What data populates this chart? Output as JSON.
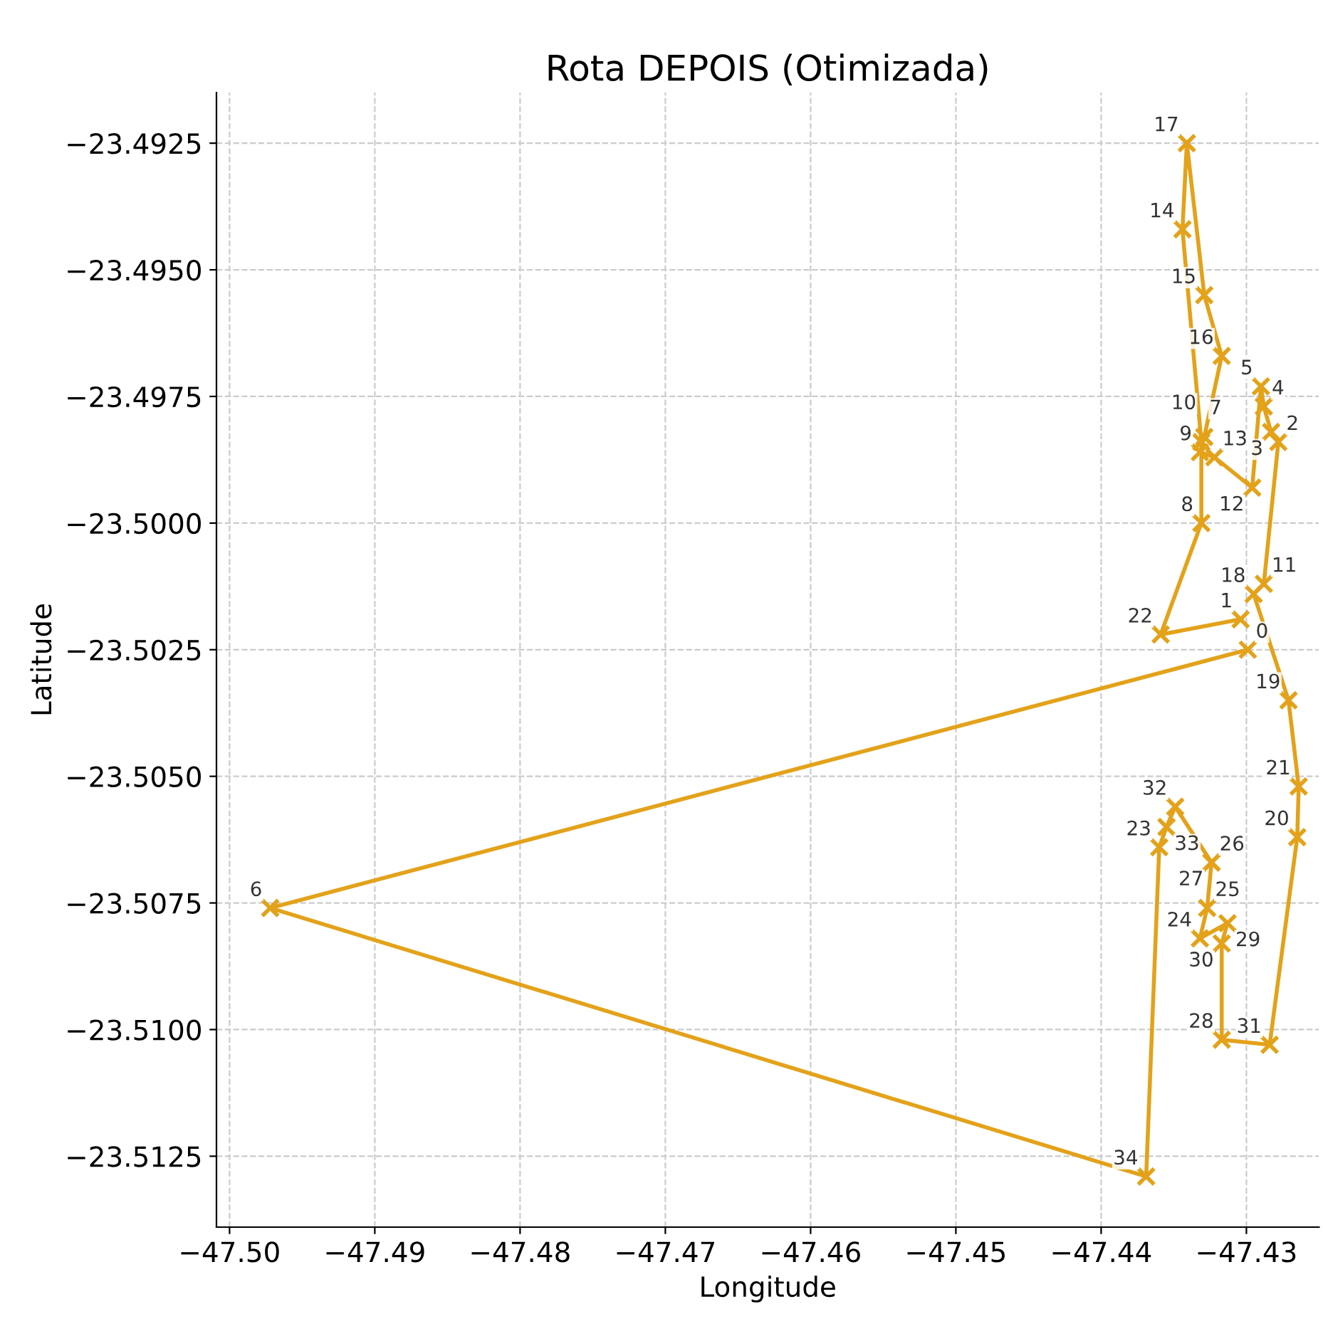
{
  "chart_data": {
    "type": "line",
    "title": "Rota DEPOIS (Otimizada)",
    "xlabel": "Longitude",
    "ylabel": "Latitude",
    "series": [
      {
        "color": "#e3a21a",
        "marker": "cross",
        "line_style": "solid",
        "x": [
          -47.4299,
          -47.4972,
          -47.4369,
          -47.436,
          -47.4355,
          -47.4349,
          -47.4324,
          -47.4324,
          -47.4327,
          -47.4332,
          -47.4313,
          -47.4317,
          -47.4317,
          -47.4284,
          -47.4265,
          -47.4264,
          -47.4271,
          -47.4295,
          -47.4288,
          -47.4278,
          -47.4283,
          -47.4288,
          -47.429,
          -47.4296,
          -47.4322,
          -47.4332,
          -47.4329,
          -47.4317,
          -47.4329,
          -47.4341,
          -47.4344,
          -47.4331,
          -47.4331,
          -47.4359,
          -47.4304
        ],
        "values": [
          -23.5025,
          -23.5076,
          -23.5129,
          -23.5064,
          -23.506,
          -23.5056,
          -23.5067,
          -23.5067,
          -23.5076,
          -23.5082,
          -23.5079,
          -23.5083,
          -23.5102,
          -23.5103,
          -23.5062,
          -23.5052,
          -23.5035,
          -23.5014,
          -23.5012,
          -23.4984,
          -23.4982,
          -23.4977,
          -23.4973,
          -23.4993,
          -23.4987,
          -23.4986,
          -23.4983,
          -23.4967,
          -23.4955,
          -23.4925,
          -23.4942,
          -23.4984,
          -23.5,
          -23.5022,
          -23.5019
        ]
      }
    ],
    "annotations": [
      {
        "text": "0",
        "x": -47.4299,
        "y": -23.5025
      },
      {
        "text": "6",
        "x": -47.4972,
        "y": -23.5076
      },
      {
        "text": "34",
        "x": -47.4369,
        "y": -23.5129
      },
      {
        "text": "23",
        "x": -47.436,
        "y": -23.5064
      },
      {
        "text": "33",
        "x": -47.4355,
        "y": -23.506
      },
      {
        "text": "32",
        "x": -47.4349,
        "y": -23.5056
      },
      {
        "text": "26",
        "x": -47.4324,
        "y": -23.5067
      },
      {
        "text": "27",
        "x": -47.4324,
        "y": -23.5067
      },
      {
        "text": "25",
        "x": -47.4327,
        "y": -23.5076
      },
      {
        "text": "24",
        "x": -47.4332,
        "y": -23.5082
      },
      {
        "text": "29",
        "x": -47.4313,
        "y": -23.5079
      },
      {
        "text": "30",
        "x": -47.4317,
        "y": -23.5083
      },
      {
        "text": "28",
        "x": -47.4317,
        "y": -23.5102
      },
      {
        "text": "31",
        "x": -47.4284,
        "y": -23.5103
      },
      {
        "text": "20",
        "x": -47.4265,
        "y": -23.5062
      },
      {
        "text": "21",
        "x": -47.4264,
        "y": -23.5052
      },
      {
        "text": "19",
        "x": -47.4271,
        "y": -23.5035
      },
      {
        "text": "18",
        "x": -47.4295,
        "y": -23.5014
      },
      {
        "text": "11",
        "x": -47.4288,
        "y": -23.5012
      },
      {
        "text": "2",
        "x": -47.4278,
        "y": -23.4984
      },
      {
        "text": "3",
        "x": -47.4283,
        "y": -23.4982
      },
      {
        "text": "4",
        "x": -47.4288,
        "y": -23.4977
      },
      {
        "text": "5",
        "x": -47.429,
        "y": -23.4973
      },
      {
        "text": "12",
        "x": -47.4296,
        "y": -23.4993
      },
      {
        "text": "13",
        "x": -47.4322,
        "y": -23.4987
      },
      {
        "text": "9",
        "x": -47.4332,
        "y": -23.4986
      },
      {
        "text": "10",
        "x": -47.4329,
        "y": -23.4983
      },
      {
        "text": "16",
        "x": -47.4317,
        "y": -23.4967
      },
      {
        "text": "15",
        "x": -47.4329,
        "y": -23.4955
      },
      {
        "text": "17",
        "x": -47.4341,
        "y": -23.4925
      },
      {
        "text": "14",
        "x": -47.4344,
        "y": -23.4942
      },
      {
        "text": "7",
        "x": -47.4331,
        "y": -23.4984
      },
      {
        "text": "8",
        "x": -47.4331,
        "y": -23.5
      },
      {
        "text": "22",
        "x": -47.4359,
        "y": -23.5022
      },
      {
        "text": "1",
        "x": -47.4304,
        "y": -23.5019
      }
    ],
    "xlim": [
      -47.5009,
      -47.425
    ],
    "ylim": [
      -23.5139,
      -23.4915
    ],
    "xticks": [
      {
        "value": -47.5,
        "label": "−47.50"
      },
      {
        "value": -47.49,
        "label": "−47.49"
      },
      {
        "value": -47.48,
        "label": "−47.48"
      },
      {
        "value": -47.47,
        "label": "−47.47"
      },
      {
        "value": -47.46,
        "label": "−47.46"
      },
      {
        "value": -47.45,
        "label": "−47.45"
      },
      {
        "value": -47.44,
        "label": "−47.44"
      },
      {
        "value": -47.43,
        "label": "−47.43"
      }
    ],
    "yticks": [
      {
        "value": -23.5125,
        "label": "−23.5125"
      },
      {
        "value": -23.51,
        "label": "−23.5100"
      },
      {
        "value": -23.5075,
        "label": "−23.5075"
      },
      {
        "value": -23.505,
        "label": "−23.5050"
      },
      {
        "value": -23.5025,
        "label": "−23.5025"
      },
      {
        "value": -23.5,
        "label": "−23.5000"
      },
      {
        "value": -23.4975,
        "label": "−23.4975"
      },
      {
        "value": -23.495,
        "label": "−23.4950"
      },
      {
        "value": -23.4925,
        "label": "−23.4925"
      }
    ],
    "grid": true,
    "legend": false
  }
}
